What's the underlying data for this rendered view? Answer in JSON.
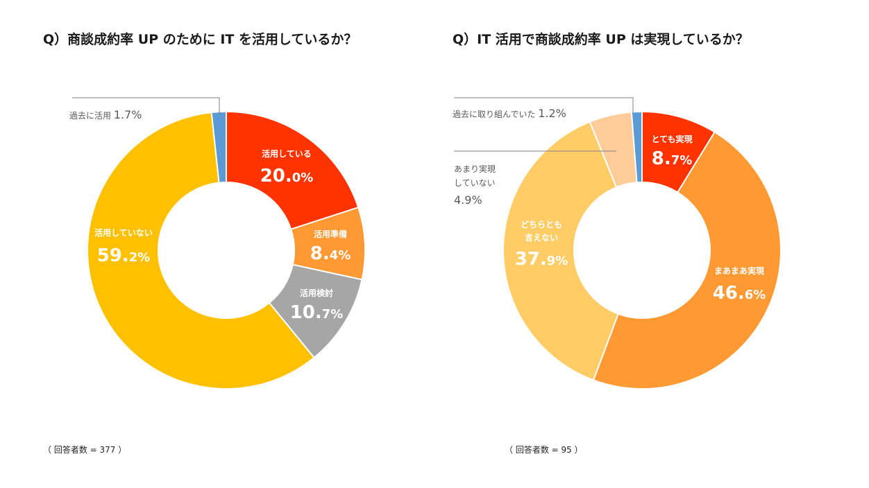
{
  "chart_data": [
    {
      "type": "pie",
      "variant": "donut",
      "title": "Q）商談成約率 UP のために IT を活用しているか？",
      "respondents": "（ 回答者数 = 377 ）",
      "slices": [
        {
          "label": "活用している",
          "value": 20.0,
          "num": "20.",
          "dec": "0%",
          "color": "#ff3300",
          "label_color": "white"
        },
        {
          "label": "活用準備",
          "value": 8.4,
          "num": "8.",
          "dec": "4%",
          "color": "#ff9933",
          "label_color": "white"
        },
        {
          "label": "活用検討",
          "value": 10.7,
          "num": "10.",
          "dec": "7%",
          "color": "#a6a6a6",
          "label_color": "white"
        },
        {
          "label": "活用していない",
          "value": 59.2,
          "num": "59.",
          "dec": "2%",
          "color": "#ffc000",
          "label_color": "white"
        },
        {
          "label": "過去に活用",
          "value": 1.7,
          "num": "1.7%",
          "dec": "",
          "color": "#5b9bd5",
          "label_color": "gray"
        }
      ]
    },
    {
      "type": "pie",
      "variant": "donut",
      "title": "Q）IT 活用で商談成約率 UP は実現しているか？",
      "respondents": "（ 回答者数 = 95 ）",
      "slices": [
        {
          "label": "とても実現",
          "value": 8.7,
          "num": "8.",
          "dec": "7%",
          "color": "#ff3300",
          "label_color": "white"
        },
        {
          "label": "まあまあ実現",
          "value": 46.6,
          "num": "46.",
          "dec": "6%",
          "color": "#ff9933",
          "label_color": "white"
        },
        {
          "label_lines": [
            "どちらとも",
            "言えない"
          ],
          "value": 37.9,
          "num": "37.",
          "dec": "9%",
          "color": "#ffcc66",
          "label_color": "white"
        },
        {
          "label_lines": [
            "あまり実現",
            "していない"
          ],
          "value": 4.9,
          "num": "4.9%",
          "dec": "",
          "color": "#ffcc99",
          "label_color": "gray"
        },
        {
          "label": "過去に取り組んでいた",
          "value": 1.2,
          "num": "1.2%",
          "dec": "",
          "color": "#5b9bd5",
          "label_color": "gray"
        }
      ]
    }
  ]
}
